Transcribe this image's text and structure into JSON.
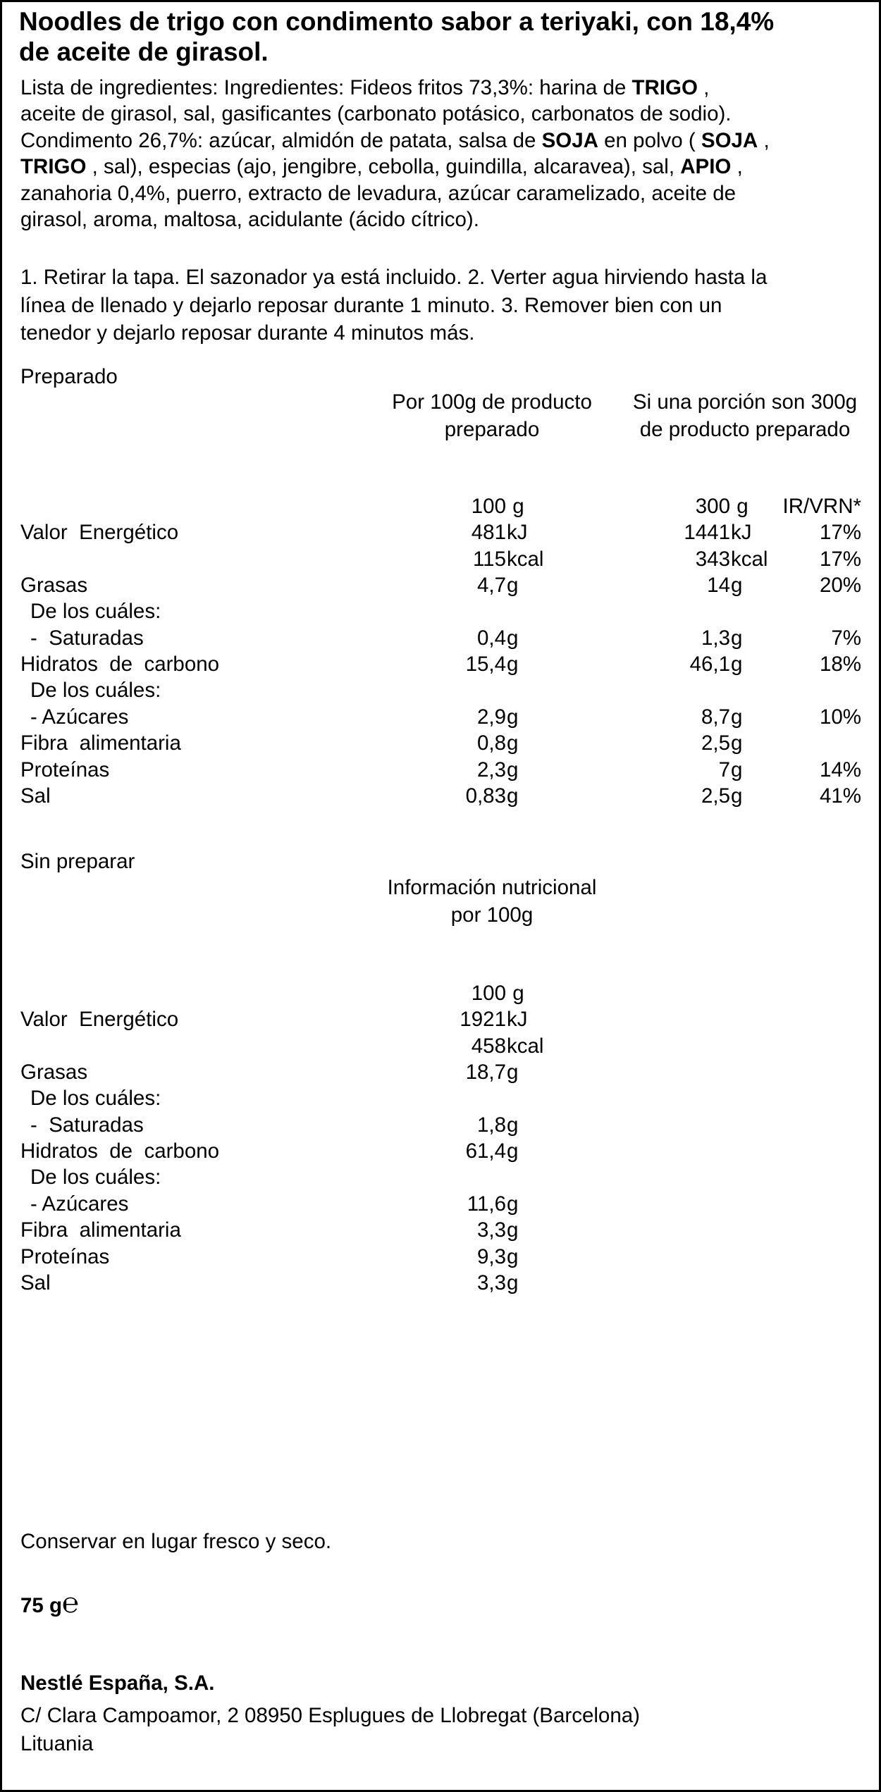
{
  "title_lines": [
    "Noodles de trigo con condimento sabor a teriyaki, con 18,4%",
    "de aceite de girasol."
  ],
  "ingredients_lines": [
    [
      {
        "t": "Lista de ingredientes: Ingredientes: Fideos fritos 73,3%: harina de "
      },
      {
        "t": "TRIGO",
        "b": true
      },
      {
        "t": " ,"
      }
    ],
    [
      {
        "t": "aceite de girasol, sal, gasificantes (carbonato potásico, carbonatos de sodio)."
      }
    ],
    [
      {
        "t": "Condimento 26,7%: azúcar, almidón de patata, salsa de "
      },
      {
        "t": "SOJA",
        "b": true
      },
      {
        "t": " en polvo ( "
      },
      {
        "t": "SOJA",
        "b": true
      },
      {
        "t": " ,"
      }
    ],
    [
      {
        "t": "TRIGO",
        "b": true
      },
      {
        "t": " , sal), especias (ajo, jengibre, cebolla, guindilla, alcaravea), sal, "
      },
      {
        "t": "APIO",
        "b": true
      },
      {
        "t": " ,"
      }
    ],
    [
      {
        "t": "zanahoria 0,4%, puerro, extracto de levadura, azúcar caramelizado, aceite de"
      }
    ],
    [
      {
        "t": "girasol, aroma, maltosa, acidulante (ácido cítrico)."
      }
    ]
  ],
  "instructions_lines": [
    "1. Retirar la tapa. El sazonador ya está incluido. 2. Verter agua hirviendo hasta la",
    "línea de llenado y dejarlo reposar durante 1 minuto. 3. Remover bien con un",
    "tenedor y dejarlo reposar durante 4 minutos más."
  ],
  "prepared": {
    "section_label": "Preparado",
    "header_col1": "Por 100g de producto\npreparado",
    "header_col2": "Si una porción son 300g\nde producto preparado",
    "rows": [
      {
        "label": "",
        "n1": "100",
        "u1": " g",
        "n2": "300",
        "u2": " g",
        "pct": "IR/VRN*"
      },
      {
        "label": "Valor  Energético",
        "n1": "481",
        "u1": "kJ",
        "n2": "1441",
        "u2": "kJ",
        "pct": "17%"
      },
      {
        "label": "",
        "n1": "115",
        "u1": "kcal",
        "n2": "343",
        "u2": "kcal",
        "pct": "17%"
      },
      {
        "label": "Grasas",
        "n1": "4,7",
        "u1": "g",
        "n2": "14",
        "u2": "g",
        "pct": "20%"
      },
      {
        "label": "De los cuáles:",
        "ind": true,
        "n1": "",
        "u1": "",
        "n2": "",
        "u2": "",
        "pct": ""
      },
      {
        "label": "-  Saturadas",
        "ind": true,
        "n1": "0,4",
        "u1": "g",
        "n2": "1,3",
        "u2": "g",
        "pct": "7%"
      },
      {
        "label": "Hidratos  de  carbono",
        "n1": "15,4",
        "u1": "g",
        "n2": "46,1",
        "u2": "g",
        "pct": "18%"
      },
      {
        "label": "De los cuáles:",
        "ind": true,
        "n1": "",
        "u1": "",
        "n2": "",
        "u2": "",
        "pct": ""
      },
      {
        "label": "- Azúcares",
        "ind": true,
        "n1": "2,9",
        "u1": "g",
        "n2": "8,7",
        "u2": "g",
        "pct": "10%"
      },
      {
        "label": "Fibra  alimentaria",
        "n1": "0,8",
        "u1": "g",
        "n2": "2,5",
        "u2": "g",
        "pct": ""
      },
      {
        "label": "Proteínas",
        "n1": "2,3",
        "u1": "g",
        "n2": "7",
        "u2": "g",
        "pct": "14%"
      },
      {
        "label": "Sal",
        "n1": "0,83",
        "u1": "g",
        "n2": "2,5",
        "u2": "g",
        "pct": "41%"
      }
    ]
  },
  "unprepared": {
    "section_label": "Sin preparar",
    "header_col1": "Información nutricional\npor 100g",
    "rows": [
      {
        "label": "",
        "n1": "100",
        "u1": " g"
      },
      {
        "label": "Valor  Energético",
        "n1": "1921",
        "u1": "kJ"
      },
      {
        "label": "",
        "n1": "458",
        "u1": "kcal"
      },
      {
        "label": "Grasas",
        "n1": "18,7",
        "u1": "g"
      },
      {
        "label": "De los cuáles:",
        "ind": true,
        "n1": "",
        "u1": ""
      },
      {
        "label": "-  Saturadas",
        "ind": true,
        "n1": "1,8",
        "u1": "g"
      },
      {
        "label": "Hidratos  de  carbono",
        "n1": "61,4",
        "u1": "g"
      },
      {
        "label": "De los cuáles:",
        "ind": true,
        "n1": "",
        "u1": ""
      },
      {
        "label": "- Azúcares",
        "ind": true,
        "n1": "11,6",
        "u1": "g"
      },
      {
        "label": "Fibra  alimentaria",
        "n1": "3,3",
        "u1": "g"
      },
      {
        "label": "Proteínas",
        "n1": "9,3",
        "u1": "g"
      },
      {
        "label": "Sal",
        "n1": "3,3",
        "u1": "g"
      }
    ]
  },
  "storage": "Conservar en lugar fresco y seco.",
  "net_weight": "75 g",
  "estimated_mark": "℮",
  "company": {
    "name": "Nestlé España, S.A.",
    "address": "C/ Clara Campoamor, 2 08950 Esplugues de Llobregat (Barcelona)",
    "origin": "Lituania"
  }
}
